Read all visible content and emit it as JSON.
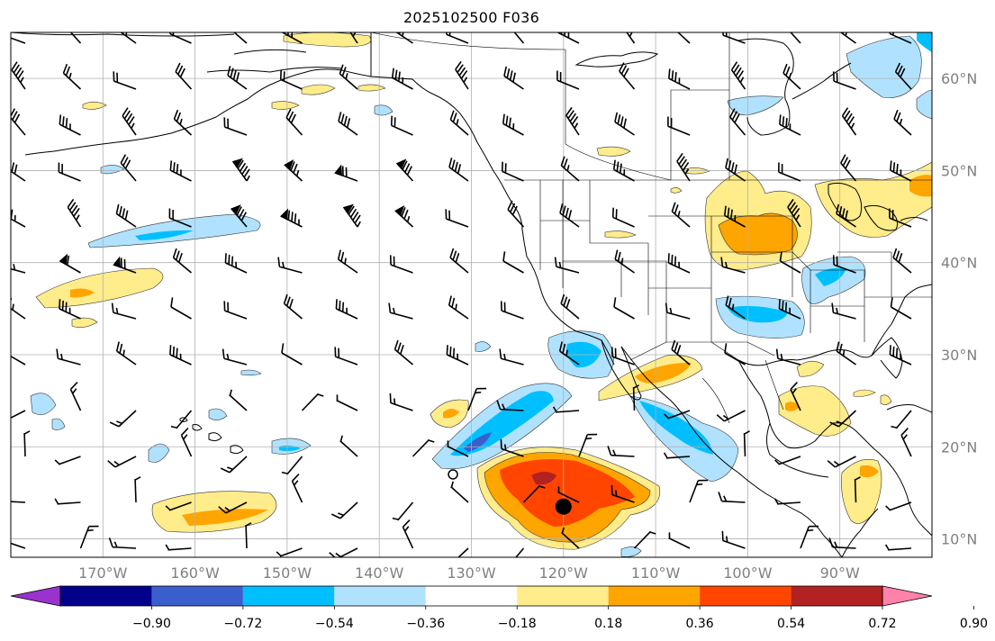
{
  "title": "2025102500 F036",
  "map": {
    "lon_range": [
      -180,
      -80
    ],
    "lat_range": [
      8,
      65
    ],
    "lon_ticks": [
      {
        "lon": -170,
        "label": "170°W"
      },
      {
        "lon": -160,
        "label": "160°W"
      },
      {
        "lon": -150,
        "label": "150°W"
      },
      {
        "lon": -140,
        "label": "140°W"
      },
      {
        "lon": -130,
        "label": "130°W"
      },
      {
        "lon": -120,
        "label": "120°W"
      },
      {
        "lon": -110,
        "label": "110°W"
      },
      {
        "lon": -100,
        "label": "100°W"
      },
      {
        "lon": -90,
        "label": "90°W"
      }
    ],
    "lat_ticks": [
      {
        "lat": 60,
        "label": "60°N"
      },
      {
        "lat": 50,
        "label": "50°N"
      },
      {
        "lat": 40,
        "label": "40°N"
      },
      {
        "lat": 30,
        "label": "30°N"
      },
      {
        "lat": 20,
        "label": "20°N"
      },
      {
        "lat": 10,
        "label": "10°N"
      }
    ],
    "storm_center": {
      "lon": -120,
      "lat": 13.5
    },
    "storm_hollow": {
      "lon": -132,
      "lat": 17
    }
  },
  "colorbar": {
    "colors": [
      "#9a32cd",
      "#00008b",
      "#3a5fcd",
      "#00bfff",
      "#b0e2ff",
      "#ffffff",
      "#ffec8b",
      "#ffa500",
      "#ff4500",
      "#b22222",
      "#ff82ab"
    ],
    "tick_labels": [
      "−0.90",
      "−0.72",
      "−0.54",
      "−0.36",
      "−0.18",
      "0.18",
      "0.36",
      "0.54",
      "0.72",
      "0.90"
    ]
  }
}
